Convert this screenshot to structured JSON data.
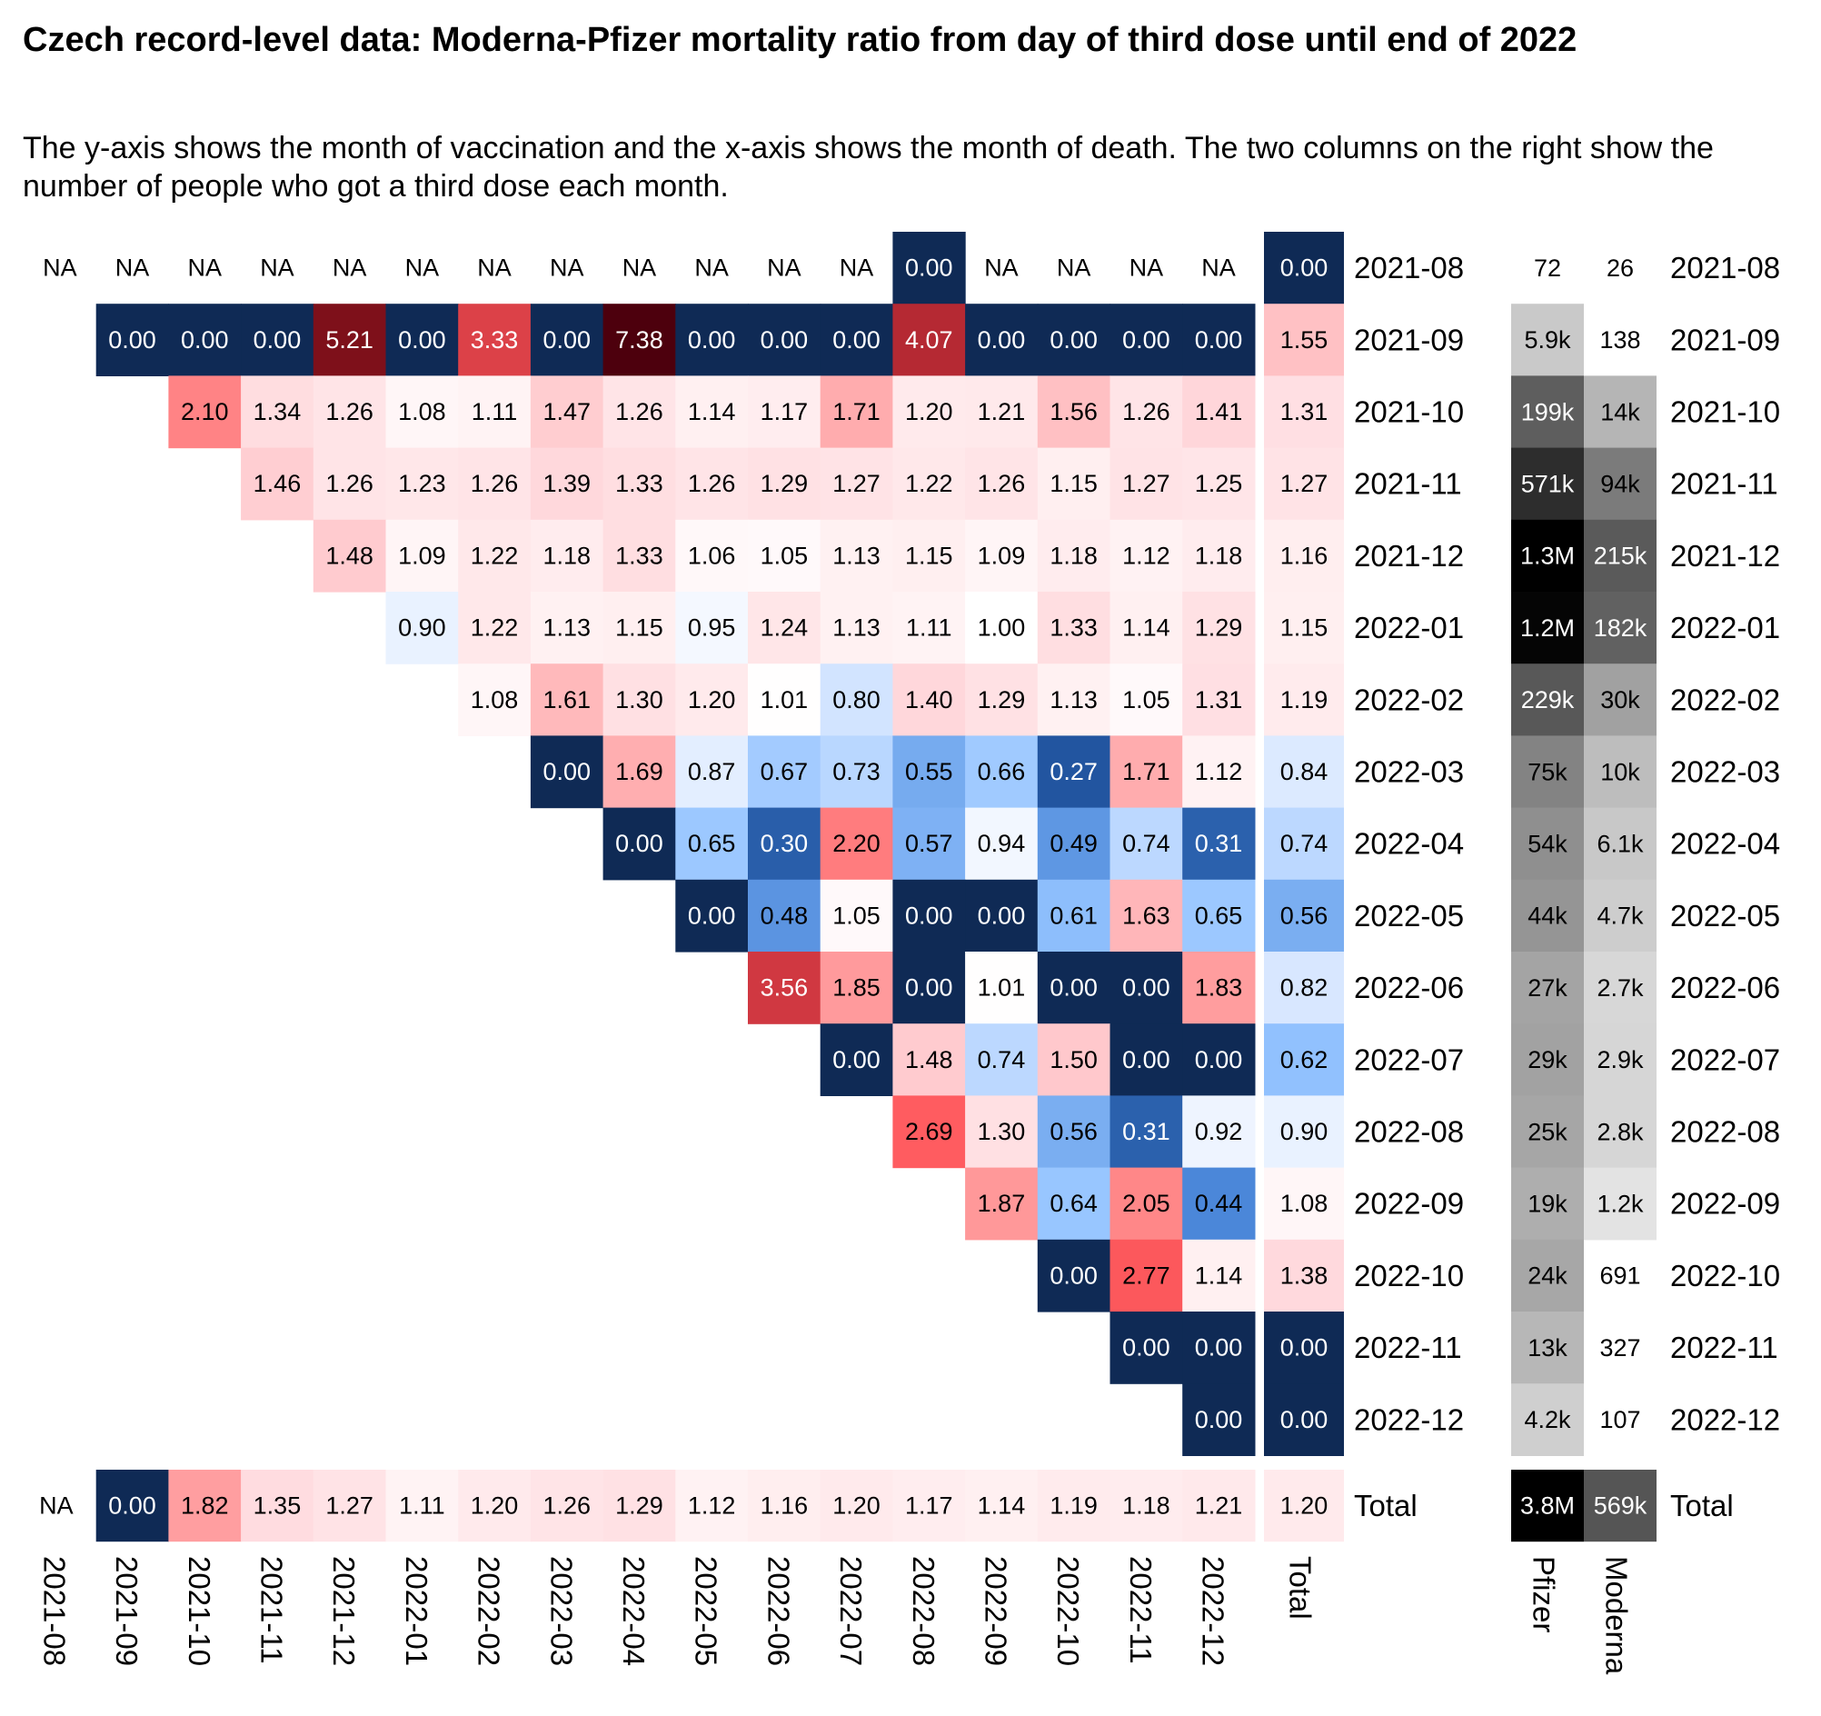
{
  "chart_data": {
    "type": "heatmap",
    "title": "Czech record-level data: Moderna-Pfizer mortality ratio from day of third dose until end of 2022",
    "subtitle": "The y-axis shows the month of vaccination and the x-axis shows the month of death. The two columns on the right show the number of people who got a third dose each month.",
    "xlabel": "",
    "ylabel": "",
    "x_categories": [
      "2021-08",
      "2021-09",
      "2021-10",
      "2021-11",
      "2021-12",
      "2022-01",
      "2022-02",
      "2022-03",
      "2022-04",
      "2022-05",
      "2022-06",
      "2022-07",
      "2022-08",
      "2022-09",
      "2022-10",
      "2022-11",
      "2022-12"
    ],
    "y_categories": [
      "2021-08",
      "2021-09",
      "2021-10",
      "2021-11",
      "2021-12",
      "2022-01",
      "2022-02",
      "2022-03",
      "2022-04",
      "2022-05",
      "2022-06",
      "2022-07",
      "2022-08",
      "2022-09",
      "2022-10",
      "2022-11",
      "2022-12"
    ],
    "total_label": "Total",
    "na_label": "NA",
    "matrix": [
      [
        "NA",
        "NA",
        "NA",
        "NA",
        "NA",
        "NA",
        "NA",
        "NA",
        "NA",
        "NA",
        "NA",
        "NA",
        "0.00",
        "NA",
        "NA",
        "NA",
        "NA"
      ],
      [
        null,
        "0.00",
        "0.00",
        "0.00",
        "5.21",
        "0.00",
        "3.33",
        "0.00",
        "7.38",
        "0.00",
        "0.00",
        "0.00",
        "4.07",
        "0.00",
        "0.00",
        "0.00",
        "0.00"
      ],
      [
        null,
        null,
        "2.10",
        "1.34",
        "1.26",
        "1.08",
        "1.11",
        "1.47",
        "1.26",
        "1.14",
        "1.17",
        "1.71",
        "1.20",
        "1.21",
        "1.56",
        "1.26",
        "1.41"
      ],
      [
        null,
        null,
        null,
        "1.46",
        "1.26",
        "1.23",
        "1.26",
        "1.39",
        "1.33",
        "1.26",
        "1.29",
        "1.27",
        "1.22",
        "1.26",
        "1.15",
        "1.27",
        "1.25"
      ],
      [
        null,
        null,
        null,
        null,
        "1.48",
        "1.09",
        "1.22",
        "1.18",
        "1.33",
        "1.06",
        "1.05",
        "1.13",
        "1.15",
        "1.09",
        "1.18",
        "1.12",
        "1.18"
      ],
      [
        null,
        null,
        null,
        null,
        null,
        "0.90",
        "1.22",
        "1.13",
        "1.15",
        "0.95",
        "1.24",
        "1.13",
        "1.11",
        "1.00",
        "1.33",
        "1.14",
        "1.29"
      ],
      [
        null,
        null,
        null,
        null,
        null,
        null,
        "1.08",
        "1.61",
        "1.30",
        "1.20",
        "1.01",
        "0.80",
        "1.40",
        "1.29",
        "1.13",
        "1.05",
        "1.31"
      ],
      [
        null,
        null,
        null,
        null,
        null,
        null,
        null,
        "0.00",
        "1.69",
        "0.87",
        "0.67",
        "0.73",
        "0.55",
        "0.66",
        "0.27",
        "1.71",
        "1.12"
      ],
      [
        null,
        null,
        null,
        null,
        null,
        null,
        null,
        null,
        "0.00",
        "0.65",
        "0.30",
        "2.20",
        "0.57",
        "0.94",
        "0.49",
        "0.74",
        "0.31"
      ],
      [
        null,
        null,
        null,
        null,
        null,
        null,
        null,
        null,
        null,
        "0.00",
        "0.48",
        "1.05",
        "0.00",
        "0.00",
        "0.61",
        "1.63",
        "0.65"
      ],
      [
        null,
        null,
        null,
        null,
        null,
        null,
        null,
        null,
        null,
        null,
        "3.56",
        "1.85",
        "0.00",
        "1.01",
        "0.00",
        "0.00",
        "1.83"
      ],
      [
        null,
        null,
        null,
        null,
        null,
        null,
        null,
        null,
        null,
        null,
        null,
        "0.00",
        "1.48",
        "0.74",
        "1.50",
        "0.00",
        "0.00"
      ],
      [
        null,
        null,
        null,
        null,
        null,
        null,
        null,
        null,
        null,
        null,
        null,
        null,
        "2.69",
        "1.30",
        "0.56",
        "0.31",
        "0.92"
      ],
      [
        null,
        null,
        null,
        null,
        null,
        null,
        null,
        null,
        null,
        null,
        null,
        null,
        null,
        "1.87",
        "0.64",
        "2.05",
        "0.44"
      ],
      [
        null,
        null,
        null,
        null,
        null,
        null,
        null,
        null,
        null,
        null,
        null,
        null,
        null,
        null,
        "0.00",
        "2.77",
        "1.14"
      ],
      [
        null,
        null,
        null,
        null,
        null,
        null,
        null,
        null,
        null,
        null,
        null,
        null,
        null,
        null,
        null,
        "0.00",
        "0.00"
      ],
      [
        null,
        null,
        null,
        null,
        null,
        null,
        null,
        null,
        null,
        null,
        null,
        null,
        null,
        null,
        null,
        null,
        "0.00"
      ]
    ],
    "row_totals": [
      "0.00",
      "1.55",
      "1.31",
      "1.27",
      "1.16",
      "1.15",
      "1.19",
      "0.84",
      "0.74",
      "0.56",
      "0.82",
      "0.62",
      "0.90",
      "1.08",
      "1.38",
      "0.00",
      "0.00"
    ],
    "column_totals": [
      "NA",
      "0.00",
      "1.82",
      "1.35",
      "1.27",
      "1.11",
      "1.20",
      "1.26",
      "1.29",
      "1.12",
      "1.16",
      "1.20",
      "1.17",
      "1.14",
      "1.19",
      "1.18",
      "1.21"
    ],
    "grand_total": "1.20",
    "dose_columns": [
      "Pfizer",
      "Moderna"
    ],
    "pfizer_doses": [
      "72",
      "5.9k",
      "199k",
      "571k",
      "1.3M",
      "1.2M",
      "229k",
      "75k",
      "54k",
      "44k",
      "27k",
      "29k",
      "25k",
      "19k",
      "24k",
      "13k",
      "4.2k"
    ],
    "moderna_doses": [
      "26",
      "138",
      "14k",
      "94k",
      "215k",
      "182k",
      "30k",
      "10k",
      "6.1k",
      "4.7k",
      "2.7k",
      "2.9k",
      "2.8k",
      "1.2k",
      "691",
      "327",
      "107"
    ],
    "pfizer_total": "3.8M",
    "moderna_total": "569k",
    "color_scale": {
      "type": "diverging",
      "low": "#0f2a55",
      "mid": "#ffffff",
      "high": "#4d000d",
      "midpoint": 1.0
    },
    "dose_color_scale": {
      "type": "sequential-grey",
      "low": "#ffffff",
      "high": "#000000"
    }
  }
}
